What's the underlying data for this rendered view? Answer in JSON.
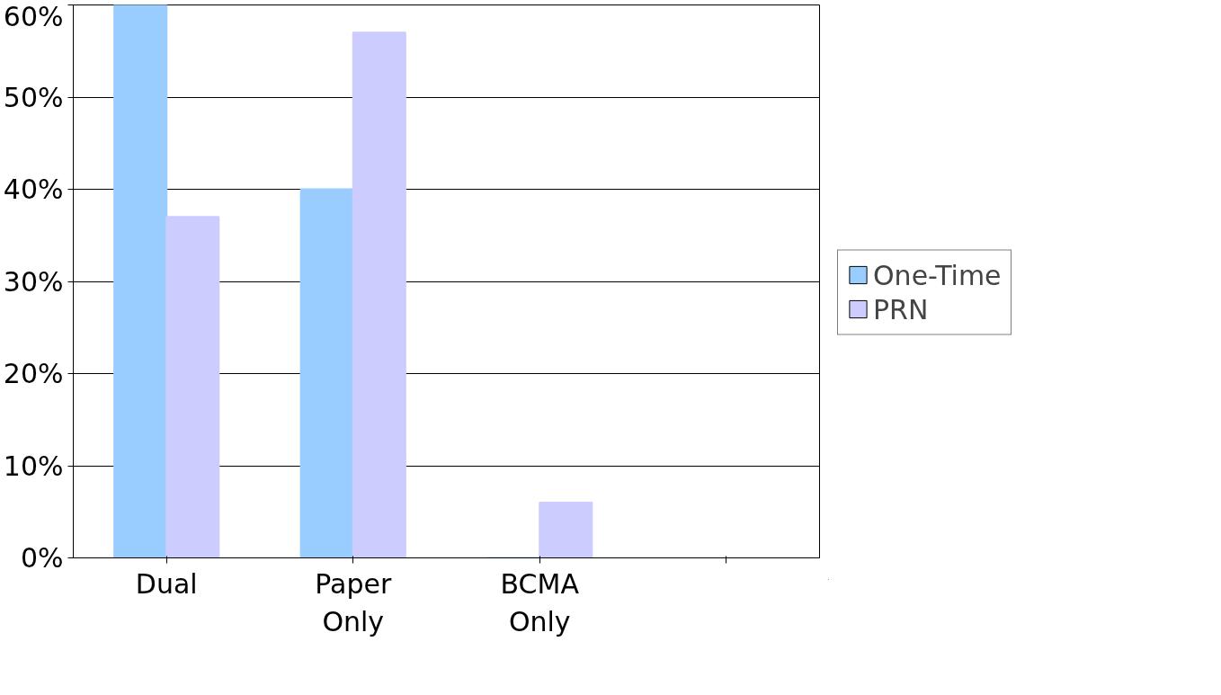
{
  "chart_data": {
    "type": "bar",
    "categories": [
      "Dual",
      "Paper Only",
      "BCMA Only",
      null
    ],
    "series": [
      {
        "name": "One-Time",
        "color": "#99ccff",
        "values": [
          60,
          40,
          0,
          null
        ]
      },
      {
        "name": "PRN",
        "color": "#ccccff",
        "values": [
          37,
          57,
          6,
          null
        ]
      }
    ],
    "ylim": [
      0,
      60
    ],
    "yticks": [
      {
        "value": 0,
        "label": "0%"
      },
      {
        "value": 10,
        "label": "10%"
      },
      {
        "value": 20,
        "label": "20%"
      },
      {
        "value": 30,
        "label": "30%"
      },
      {
        "value": 40,
        "label": "40%"
      },
      {
        "value": 50,
        "label": "50%"
      },
      {
        "value": 60,
        "label": "60%"
      }
    ],
    "grid": "y",
    "legend": "right"
  }
}
